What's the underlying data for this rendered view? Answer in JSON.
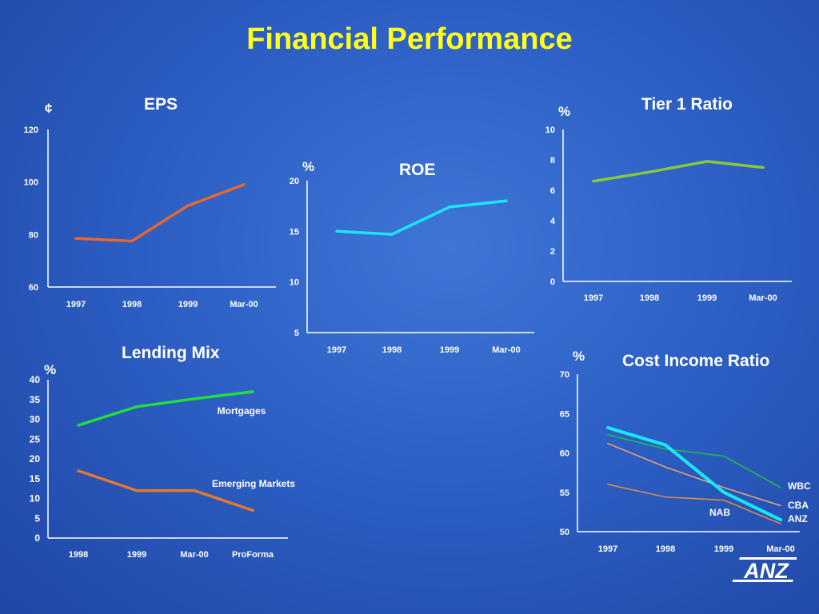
{
  "title": "Financial Performance",
  "logo_text": "ANZ",
  "chart_data": [
    {
      "id": "eps",
      "type": "line",
      "title": "EPS",
      "ylabel": "¢",
      "categories": [
        "1997",
        "1998",
        "1999",
        "Mar-00"
      ],
      "ylim": [
        60,
        120
      ],
      "yticks": [
        60,
        80,
        100,
        120
      ],
      "series": [
        {
          "name": "",
          "color": "#e8672a",
          "values": [
            78.5,
            77.5,
            91,
            99
          ]
        }
      ]
    },
    {
      "id": "roe",
      "type": "line",
      "title": "ROE",
      "ylabel": "%",
      "categories": [
        "1997",
        "1998",
        "1999",
        "Mar-00"
      ],
      "ylim": [
        5,
        20
      ],
      "yticks": [
        5,
        10,
        15,
        20
      ],
      "series": [
        {
          "name": "",
          "color": "#19e8ff",
          "values": [
            15,
            14.7,
            17.4,
            18
          ]
        }
      ]
    },
    {
      "id": "tier1",
      "type": "line",
      "title": "Tier 1 Ratio",
      "ylabel": "%",
      "categories": [
        "1997",
        "1998",
        "1999",
        "Mar-00"
      ],
      "ylim": [
        0,
        10
      ],
      "yticks": [
        0,
        2,
        4,
        6,
        8,
        10
      ],
      "series": [
        {
          "name": "",
          "color": "#8ac63a",
          "values": [
            6.6,
            7.2,
            7.9,
            7.5
          ]
        }
      ]
    },
    {
      "id": "lending",
      "type": "line",
      "title": "Lending Mix",
      "ylabel": "%",
      "categories": [
        "1998",
        "1999",
        "Mar-00",
        "ProForma"
      ],
      "ylim": [
        0,
        40
      ],
      "yticks": [
        0,
        5,
        10,
        15,
        20,
        25,
        30,
        35,
        40
      ],
      "series": [
        {
          "name": "Mortgages",
          "color": "#1fe03a",
          "values": [
            28.5,
            33.2,
            35.2,
            37
          ]
        },
        {
          "name": "Emerging Markets",
          "color": "#e8782a",
          "values": [
            17,
            12,
            12,
            7
          ]
        }
      ]
    },
    {
      "id": "cost-income",
      "type": "line",
      "title": "Cost Income Ratio",
      "ylabel": "%",
      "categories": [
        "1997",
        "1998",
        "1999",
        "Mar-00"
      ],
      "ylim": [
        50,
        70
      ],
      "yticks": [
        50,
        55,
        60,
        65,
        70
      ],
      "series": [
        {
          "name": "WBC",
          "color": "#20c040",
          "values": [
            62.3,
            60.5,
            59.6,
            55.6
          ]
        },
        {
          "name": "CBA",
          "color": "#f0a86a",
          "values": [
            61.2,
            58.2,
            55.6,
            53.3
          ]
        },
        {
          "name": "ANZ",
          "color": "#19e8ff",
          "values": [
            63.2,
            61,
            55,
            51.5
          ]
        },
        {
          "name": "NAB",
          "color": "#e8903a",
          "values": [
            56,
            54.4,
            54,
            51
          ]
        }
      ]
    }
  ]
}
